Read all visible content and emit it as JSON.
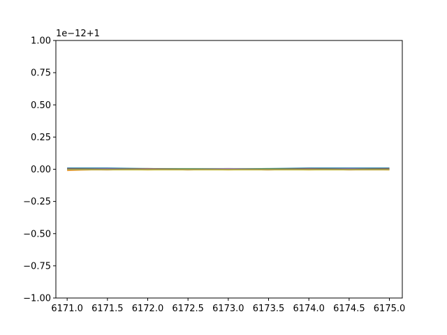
{
  "chart_data": {
    "type": "line",
    "title": "",
    "xlabel": "",
    "ylabel": "",
    "y_offset_text": "1e−12+1",
    "xlim": [
      6170.86,
      6175.16
    ],
    "ylim": [
      -1.0,
      1.0
    ],
    "grid": false,
    "legend": "none",
    "xticks": [
      6171.0,
      6171.5,
      6172.0,
      6172.5,
      6173.0,
      6173.5,
      6174.0,
      6174.5,
      6175.0
    ],
    "xtick_labels": [
      "6171.0",
      "6171.5",
      "6172.0",
      "6172.5",
      "6173.0",
      "6173.5",
      "6174.0",
      "6174.5",
      "6175.0"
    ],
    "yticks": [
      -1.0,
      -0.75,
      -0.5,
      -0.25,
      0.0,
      0.25,
      0.5,
      0.75,
      1.0
    ],
    "ytick_labels": [
      "−1.00",
      "−0.75",
      "−0.50",
      "−0.25",
      "0.00",
      "0.25",
      "0.50",
      "0.75",
      "1.00"
    ],
    "series": [
      {
        "color": "#1f77b4",
        "x": [
          6171.0,
          6171.5,
          6172.0,
          6172.5,
          6173.0,
          6173.5,
          6174.0,
          6174.5,
          6175.0
        ],
        "y": [
          0.01,
          0.01,
          0.005,
          0.0,
          0.0,
          0.005,
          0.01,
          0.01,
          0.01
        ]
      },
      {
        "color": "#ff7f0e",
        "x": [
          6171.0,
          6171.5,
          6172.0,
          6172.5,
          6173.0,
          6173.5,
          6174.0,
          6174.5,
          6175.0
        ],
        "y": [
          -0.01,
          0.0,
          -0.005,
          0.0,
          -0.005,
          0.0,
          -0.005,
          0.0,
          -0.005
        ]
      },
      {
        "color": "#2ca02c",
        "x": [
          6171.0,
          6171.5,
          6172.0,
          6172.5,
          6173.0,
          6173.5,
          6174.0,
          6174.5,
          6175.0
        ],
        "y": [
          0.005,
          0.005,
          0.005,
          0.005,
          0.005,
          0.005,
          0.005,
          0.005,
          0.005
        ]
      },
      {
        "color": "#d62728",
        "x": [
          6171.0,
          6171.5,
          6172.0,
          6172.5,
          6173.0,
          6173.5,
          6174.0,
          6174.5,
          6175.0
        ],
        "y": [
          0.0,
          -0.005,
          0.0,
          -0.005,
          0.0,
          -0.005,
          0.0,
          -0.005,
          0.0
        ]
      },
      {
        "color": "#9467bd",
        "x": [
          6171.0,
          6171.5,
          6172.0,
          6172.5,
          6173.0,
          6173.5,
          6174.0,
          6174.5,
          6175.0
        ],
        "y": [
          0.0,
          0.005,
          0.0,
          0.0,
          0.005,
          0.0,
          0.0,
          0.005,
          0.0
        ]
      },
      {
        "color": "#8c564b",
        "x": [
          6171.0,
          6171.5,
          6172.0,
          6172.5,
          6173.0,
          6173.5,
          6174.0,
          6174.5,
          6175.0
        ],
        "y": [
          0.005,
          0.0,
          0.005,
          0.0,
          0.0,
          0.0,
          0.005,
          0.0,
          0.005
        ]
      },
      {
        "color": "#e377c2",
        "x": [
          6171.0,
          6171.5,
          6172.0,
          6172.5,
          6173.0,
          6173.5,
          6174.0,
          6174.5,
          6175.0
        ],
        "y": [
          -0.005,
          -0.005,
          0.0,
          -0.005,
          0.0,
          -0.005,
          0.0,
          -0.005,
          -0.005
        ]
      },
      {
        "color": "#7f7f7f",
        "x": [
          6171.0,
          6171.5,
          6172.0,
          6172.5,
          6173.0,
          6173.5,
          6174.0,
          6174.5,
          6175.0
        ],
        "y": [
          0.0,
          0.0,
          0.0,
          0.0,
          0.0,
          0.0,
          0.0,
          0.0,
          0.0
        ]
      },
      {
        "color": "#bcbd22",
        "x": [
          6171.0,
          6171.5,
          6172.0,
          6172.5,
          6173.0,
          6173.5,
          6174.0,
          6174.5,
          6175.0
        ],
        "y": [
          -0.005,
          -0.005,
          -0.005,
          -0.005,
          -0.005,
          -0.005,
          -0.005,
          -0.005,
          -0.005
        ]
      }
    ]
  }
}
